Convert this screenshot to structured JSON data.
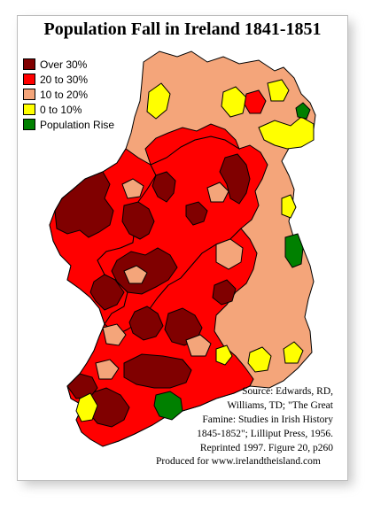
{
  "title": "Population Fall in Ireland 1841-1851",
  "legend": [
    {
      "label": "Over 30%",
      "color": "#800000"
    },
    {
      "label": "20 to 30%",
      "color": "#ff0000"
    },
    {
      "label": "10 to 20%",
      "color": "#f4a57a"
    },
    {
      "label": "0 to 10%",
      "color": "#ffff00"
    },
    {
      "label": "Population Rise",
      "color": "#008000"
    }
  ],
  "source_lines": [
    "Source: Edwards, RD,",
    "Williams, TD; \"The Great",
    "Famine: Studies in Irish History",
    "1845-1852\"; Lilliput Press, 1956.",
    "Reprinted 1997. Figure 20, p260"
  ],
  "produced_by": "Produced for www.irelandtheisland.com"
}
